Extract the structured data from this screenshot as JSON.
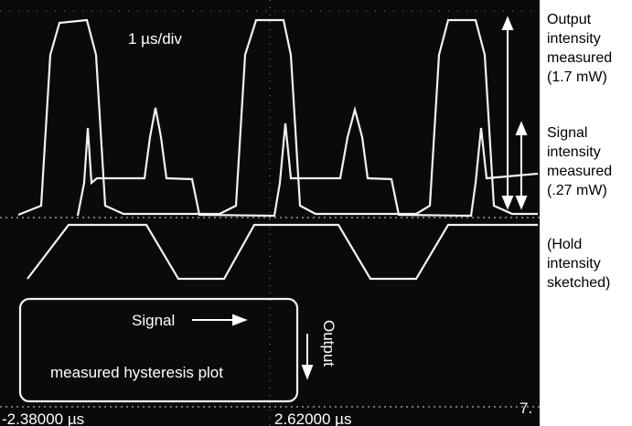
{
  "screen": {
    "scale_label": "1 µs/div",
    "signal_label": "Signal",
    "output_label": "Output",
    "plot_label": "measured hysteresis plot",
    "time_start": "-2.38000 µs",
    "time_end": "2.62000 µs",
    "corner_label": "7."
  },
  "annotations": [
    {
      "lines": [
        "Output",
        "intensity",
        "measured",
        "(1.7 mW)"
      ]
    },
    {
      "lines": [
        "Signal",
        "intensity",
        "measured",
        "(.27 mW)"
      ]
    },
    {
      "lines": [
        "(Hold",
        "intensity",
        "sketched)"
      ]
    }
  ]
}
